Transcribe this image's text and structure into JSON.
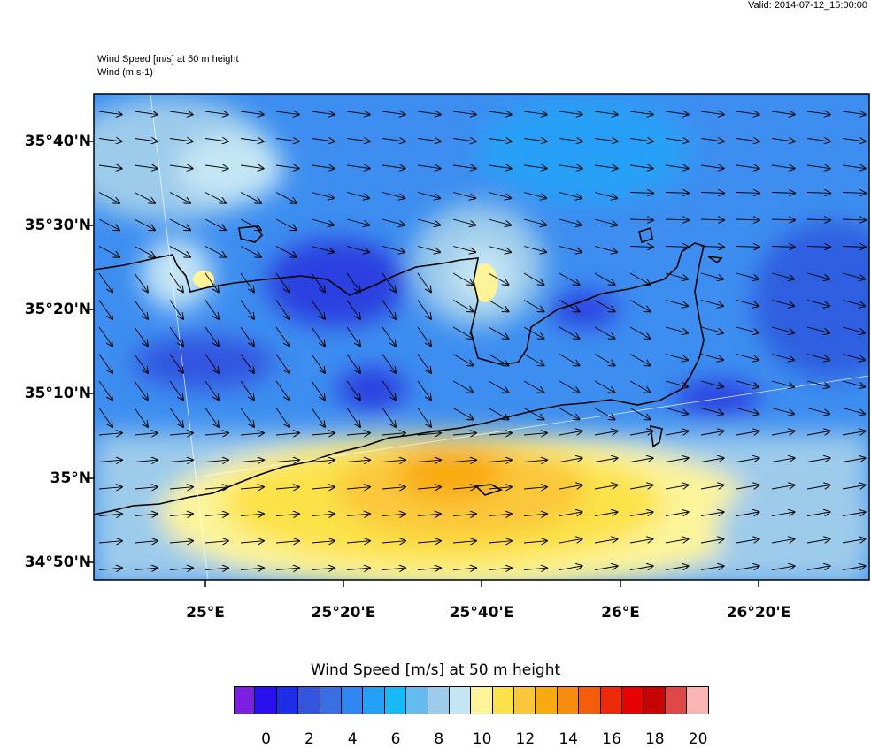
{
  "header": {
    "valid_text": "Valid: 2014-07-12_15:00:00",
    "title_line1": "Wind Speed [m/s] at 50 m height",
    "title_line2": "Wind   (m s-1)"
  },
  "axes": {
    "lat_labels": [
      "35°40'N",
      "35°30'N",
      "35°20'N",
      "35°10'N",
      "35°N",
      "34°50'N"
    ],
    "lon_labels": [
      "25°E",
      "25°20'E",
      "25°40'E",
      "26°E",
      "26°20'E"
    ]
  },
  "legend": {
    "title": "Wind Speed [m/s] at 50 m height",
    "labels": [
      "0",
      "2",
      "4",
      "6",
      "8",
      "10",
      "12",
      "14",
      "16",
      "18",
      "20"
    ],
    "colors": [
      "#7c1fe0",
      "#2a0ff0",
      "#1c2ee8",
      "#3355e0",
      "#3a6fe4",
      "#2f86f2",
      "#25a0f7",
      "#19b8f7",
      "#64bbf0",
      "#9ccbeb",
      "#c4e5f4",
      "#fdf49a",
      "#fce24a",
      "#fbc73a",
      "#f9aa11",
      "#f78c0f",
      "#f45d0c",
      "#ef2a0a",
      "#e80303",
      "#c80303",
      "#e04848",
      "#fbb4b4"
    ]
  },
  "map": {
    "lon_range": [
      24.8,
      26.6
    ],
    "lat_range": [
      34.8,
      35.75
    ],
    "coastline_color": "#000000"
  }
}
